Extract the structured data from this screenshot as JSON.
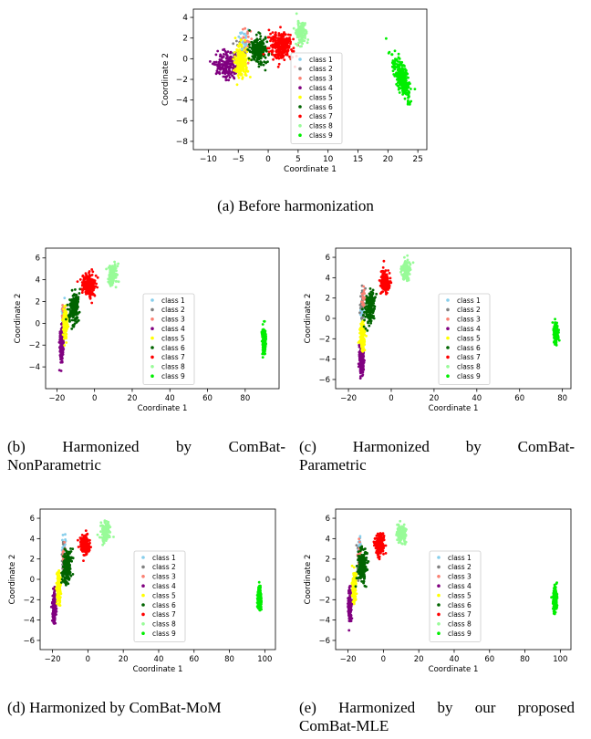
{
  "panels": [
    {
      "id": "a",
      "caption_line1": "(a) Before harmonization",
      "caption_line2": ""
    },
    {
      "id": "b",
      "caption_line1": "(b) Harmonized by ComBat-",
      "caption_line2": "NonParametric"
    },
    {
      "id": "c",
      "caption_line1": "(c) Harmonized by ComBat-",
      "caption_line2": "Parametric"
    },
    {
      "id": "d",
      "caption_line1": "(d) Harmonized by ComBat-MoM",
      "caption_line2": ""
    },
    {
      "id": "e",
      "caption_line1": "(e) Harmonized by our proposed",
      "caption_line2": "ComBat-MLE"
    }
  ],
  "chart_data": [
    {
      "type": "scatter",
      "panel": "a",
      "xlabel": "Coordinate 1",
      "ylabel": "Coordinate 2",
      "xlim": [
        -12.5,
        26.5
      ],
      "ylim": [
        -8.8,
        4.8
      ],
      "xticks": [
        -10,
        -5,
        0,
        5,
        10,
        15,
        20,
        25
      ],
      "yticks": [
        -8,
        -6,
        -4,
        -2,
        0,
        2,
        4
      ],
      "legend": "center-right",
      "series": [
        {
          "name": "class 1",
          "color": "#87ceeb",
          "clusters": [
            {
              "x": -4,
              "y": 1.5,
              "sx": 0.8,
              "sy": 1.2,
              "n": 30
            }
          ]
        },
        {
          "name": "class 2",
          "color": "#808080",
          "clusters": [
            {
              "x": -4.5,
              "y": 0.5,
              "sx": 0.9,
              "sy": 1.2,
              "n": 40
            }
          ]
        },
        {
          "name": "class 3",
          "color": "#fa8072",
          "clusters": [
            {
              "x": -3.5,
              "y": 1.5,
              "sx": 0.8,
              "sy": 1.0,
              "n": 25
            }
          ]
        },
        {
          "name": "class 4",
          "color": "#800080",
          "clusters": [
            {
              "x": -7,
              "y": -0.6,
              "sx": 1.6,
              "sy": 1.3,
              "n": 180
            }
          ]
        },
        {
          "name": "class 5",
          "color": "#ffff00",
          "clusters": [
            {
              "x": -4.5,
              "y": -0.3,
              "sx": 1.0,
              "sy": 1.4,
              "n": 180
            }
          ]
        },
        {
          "name": "class 6",
          "color": "#006400",
          "clusters": [
            {
              "x": -1.5,
              "y": 0.8,
              "sx": 1.4,
              "sy": 1.2,
              "n": 220
            }
          ]
        },
        {
          "name": "class 7",
          "color": "#ff0000",
          "clusters": [
            {
              "x": 2,
              "y": 1.3,
              "sx": 1.7,
              "sy": 1.2,
              "n": 280
            }
          ]
        },
        {
          "name": "class 8",
          "color": "#98fb98",
          "clusters": [
            {
              "x": 5.5,
              "y": 2.5,
              "sx": 0.8,
              "sy": 1.0,
              "n": 130
            }
          ]
        },
        {
          "name": "class 9",
          "color": "#00ee00",
          "clusters": [
            {
              "x": 22.3,
              "y": -1.8,
              "sx": 0.9,
              "sy": 1.9,
              "n": 280,
              "tilt": -0.28
            }
          ]
        }
      ]
    },
    {
      "type": "scatter",
      "panel": "b",
      "xlabel": "Coordinate 1",
      "ylabel": "Coordinate 2",
      "xlim": [
        -26,
        98
      ],
      "ylim": [
        -6.0,
        6.9
      ],
      "xticks": [
        -20,
        0,
        20,
        40,
        60,
        80
      ],
      "yticks": [
        -4,
        -2,
        0,
        2,
        4,
        6
      ],
      "legend": "center",
      "series": [
        {
          "name": "class 1",
          "color": "#87ceeb",
          "clusters": [
            {
              "x": -16.5,
              "y": 0.5,
              "sx": 0.9,
              "sy": 1.3,
              "n": 30
            }
          ]
        },
        {
          "name": "class 2",
          "color": "#808080",
          "clusters": [
            {
              "x": -16.5,
              "y": 0.0,
              "sx": 0.9,
              "sy": 1.4,
              "n": 30
            }
          ]
        },
        {
          "name": "class 3",
          "color": "#fa8072",
          "clusters": [
            {
              "x": -16.5,
              "y": 0.7,
              "sx": 0.9,
              "sy": 1.1,
              "n": 25
            }
          ]
        },
        {
          "name": "class 4",
          "color": "#800080",
          "clusters": [
            {
              "x": -17.5,
              "y": -2.0,
              "sx": 0.9,
              "sy": 1.3,
              "n": 180
            }
          ]
        },
        {
          "name": "class 5",
          "color": "#ffff00",
          "clusters": [
            {
              "x": -15.5,
              "y": 0.0,
              "sx": 0.9,
              "sy": 1.2,
              "n": 170
            }
          ]
        },
        {
          "name": "class 6",
          "color": "#006400",
          "clusters": [
            {
              "x": -11,
              "y": 1.2,
              "sx": 2.2,
              "sy": 1.3,
              "n": 200,
              "tilt": 0.22
            }
          ]
        },
        {
          "name": "class 7",
          "color": "#ff0000",
          "clusters": [
            {
              "x": -3,
              "y": 3.5,
              "sx": 3.0,
              "sy": 0.9,
              "n": 220
            }
          ]
        },
        {
          "name": "class 8",
          "color": "#98fb98",
          "clusters": [
            {
              "x": 9.5,
              "y": 4.5,
              "sx": 2.2,
              "sy": 0.9,
              "n": 130
            }
          ]
        },
        {
          "name": "class 9",
          "color": "#00ee00",
          "clusters": [
            {
              "x": 90,
              "y": -1.5,
              "sx": 0.9,
              "sy": 1.1,
              "n": 200
            }
          ]
        }
      ]
    },
    {
      "type": "scatter",
      "panel": "c",
      "xlabel": "Coordinate 1",
      "ylabel": "Coordinate 2",
      "xlim": [
        -26,
        84
      ],
      "ylim": [
        -6.9,
        6.9
      ],
      "xticks": [
        -20,
        0,
        20,
        40,
        60,
        80
      ],
      "yticks": [
        -6,
        -4,
        -2,
        0,
        2,
        4,
        6
      ],
      "legend": "center",
      "series": [
        {
          "name": "class 1",
          "color": "#87ceeb",
          "clusters": [
            {
              "x": -13.5,
              "y": 0.8,
              "sx": 0.9,
              "sy": 1.3,
              "n": 30
            }
          ]
        },
        {
          "name": "class 2",
          "color": "#808080",
          "clusters": [
            {
              "x": -13.5,
              "y": 1.5,
              "sx": 1.0,
              "sy": 1.4,
              "n": 35
            }
          ]
        },
        {
          "name": "class 3",
          "color": "#fa8072",
          "clusters": [
            {
              "x": -13,
              "y": 1.8,
              "sx": 0.9,
              "sy": 1.1,
              "n": 25
            }
          ]
        },
        {
          "name": "class 4",
          "color": "#800080",
          "clusters": [
            {
              "x": -14,
              "y": -4.0,
              "sx": 1.0,
              "sy": 1.3,
              "n": 180
            }
          ]
        },
        {
          "name": "class 5",
          "color": "#ffff00",
          "clusters": [
            {
              "x": -13.5,
              "y": -1.7,
              "sx": 1.0,
              "sy": 1.2,
              "n": 170
            }
          ]
        },
        {
          "name": "class 6",
          "color": "#006400",
          "clusters": [
            {
              "x": -10,
              "y": 1.0,
              "sx": 1.8,
              "sy": 1.4,
              "n": 200,
              "tilt": 0.3
            }
          ]
        },
        {
          "name": "class 7",
          "color": "#ff0000",
          "clusters": [
            {
              "x": -3,
              "y": 3.6,
              "sx": 2.0,
              "sy": 0.9,
              "n": 200
            }
          ]
        },
        {
          "name": "class 8",
          "color": "#98fb98",
          "clusters": [
            {
              "x": 7,
              "y": 4.8,
              "sx": 1.8,
              "sy": 0.9,
              "n": 130
            }
          ]
        },
        {
          "name": "class 9",
          "color": "#00ee00",
          "clusters": [
            {
              "x": 77,
              "y": -1.5,
              "sx": 0.9,
              "sy": 0.9,
              "n": 180
            }
          ]
        }
      ]
    },
    {
      "type": "scatter",
      "panel": "d",
      "xlabel": "Coordinate 1",
      "ylabel": "Coordinate 2",
      "xlim": [
        -27,
        106
      ],
      "ylim": [
        -6.9,
        6.9
      ],
      "xticks": [
        -20,
        0,
        20,
        40,
        60,
        80,
        100
      ],
      "yticks": [
        -6,
        -4,
        -2,
        0,
        2,
        4,
        6
      ],
      "legend": "center",
      "series": [
        {
          "name": "class 1",
          "color": "#87ceeb",
          "clusters": [
            {
              "x": -13.5,
              "y": 3.0,
              "sx": 1.0,
              "sy": 1.3,
              "n": 30
            }
          ]
        },
        {
          "name": "class 2",
          "color": "#808080",
          "clusters": [
            {
              "x": -14,
              "y": 1.5,
              "sx": 1.0,
              "sy": 1.4,
              "n": 30
            }
          ]
        },
        {
          "name": "class 3",
          "color": "#fa8072",
          "clusters": [
            {
              "x": -13.5,
              "y": 2.2,
              "sx": 1.0,
              "sy": 1.1,
              "n": 25
            }
          ]
        },
        {
          "name": "class 4",
          "color": "#800080",
          "clusters": [
            {
              "x": -19,
              "y": -2.8,
              "sx": 0.9,
              "sy": 1.4,
              "n": 180
            }
          ]
        },
        {
          "name": "class 5",
          "color": "#ffff00",
          "clusters": [
            {
              "x": -16.5,
              "y": -0.8,
              "sx": 1.0,
              "sy": 1.3,
              "n": 170
            }
          ]
        },
        {
          "name": "class 6",
          "color": "#006400",
          "clusters": [
            {
              "x": -12,
              "y": 1.2,
              "sx": 2.2,
              "sy": 1.4,
              "n": 200,
              "tilt": 0.25
            }
          ]
        },
        {
          "name": "class 7",
          "color": "#ff0000",
          "clusters": [
            {
              "x": -2,
              "y": 3.4,
              "sx": 2.5,
              "sy": 0.9,
              "n": 200
            }
          ]
        },
        {
          "name": "class 8",
          "color": "#98fb98",
          "clusters": [
            {
              "x": 10,
              "y": 4.5,
              "sx": 2.2,
              "sy": 0.9,
              "n": 130
            }
          ]
        },
        {
          "name": "class 9",
          "color": "#00ee00",
          "clusters": [
            {
              "x": 97,
              "y": -1.8,
              "sx": 1.0,
              "sy": 1.0,
              "n": 200
            }
          ]
        }
      ]
    },
    {
      "type": "scatter",
      "panel": "e",
      "xlabel": "Coordinate 1",
      "ylabel": "Coordinate 2",
      "xlim": [
        -27,
        106
      ],
      "ylim": [
        -6.9,
        6.9
      ],
      "xticks": [
        -20,
        0,
        20,
        40,
        60,
        80,
        100
      ],
      "yticks": [
        -6,
        -4,
        -2,
        0,
        2,
        4,
        6
      ],
      "legend": "center",
      "series": [
        {
          "name": "class 1",
          "color": "#87ceeb",
          "clusters": [
            {
              "x": -13.5,
              "y": 3.0,
              "sx": 1.0,
              "sy": 1.3,
              "n": 30
            }
          ]
        },
        {
          "name": "class 2",
          "color": "#808080",
          "clusters": [
            {
              "x": -14,
              "y": 1.5,
              "sx": 1.0,
              "sy": 1.4,
              "n": 30
            }
          ]
        },
        {
          "name": "class 3",
          "color": "#fa8072",
          "clusters": [
            {
              "x": -13.5,
              "y": 2.2,
              "sx": 1.0,
              "sy": 1.1,
              "n": 25
            }
          ]
        },
        {
          "name": "class 4",
          "color": "#800080",
          "clusters": [
            {
              "x": -19,
              "y": -2.8,
              "sx": 0.9,
              "sy": 1.4,
              "n": 180
            }
          ]
        },
        {
          "name": "class 5",
          "color": "#ffff00",
          "clusters": [
            {
              "x": -16.5,
              "y": -0.8,
              "sx": 1.0,
              "sy": 1.3,
              "n": 170
            }
          ]
        },
        {
          "name": "class 6",
          "color": "#006400",
          "clusters": [
            {
              "x": -12,
              "y": 1.2,
              "sx": 2.2,
              "sy": 1.4,
              "n": 200,
              "tilt": 0.25
            }
          ]
        },
        {
          "name": "class 7",
          "color": "#ff0000",
          "clusters": [
            {
              "x": -2,
              "y": 3.4,
              "sx": 2.5,
              "sy": 0.9,
              "n": 200
            }
          ]
        },
        {
          "name": "class 8",
          "color": "#98fb98",
          "clusters": [
            {
              "x": 10,
              "y": 4.5,
              "sx": 2.2,
              "sy": 0.9,
              "n": 130
            }
          ]
        },
        {
          "name": "class 9",
          "color": "#00ee00",
          "clusters": [
            {
              "x": 97,
              "y": -1.8,
              "sx": 1.0,
              "sy": 1.0,
              "n": 200
            }
          ]
        }
      ]
    }
  ]
}
